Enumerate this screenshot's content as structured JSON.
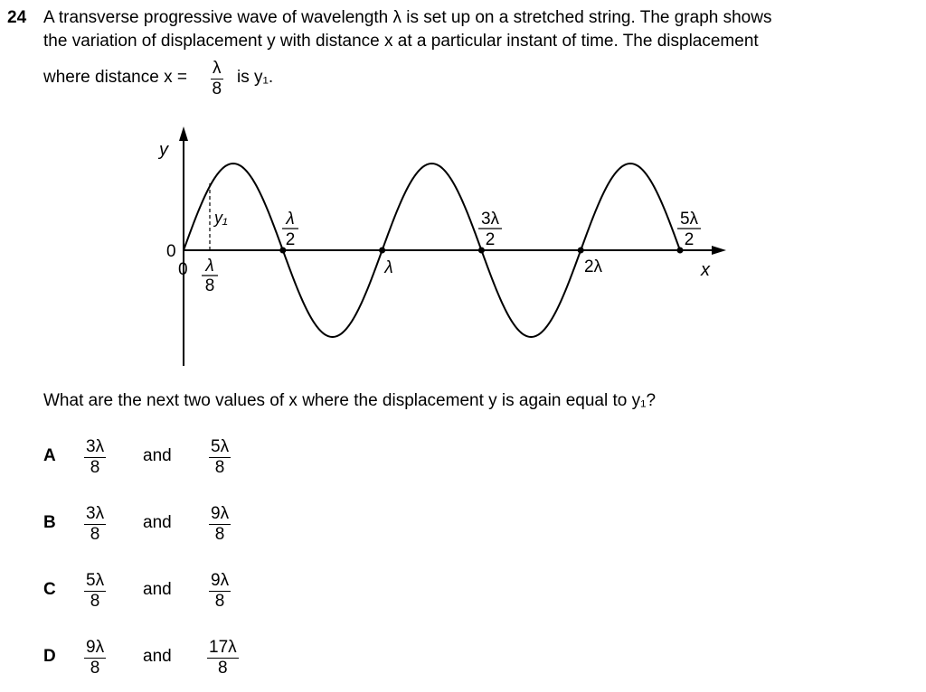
{
  "question": {
    "number": "24",
    "line1": "A transverse progressive wave of wavelength λ is set up on a stretched string. The graph shows",
    "line2": "the variation of displacement y with distance x at a particular instant of time. The displacement",
    "line3_prefix": "where distance x =",
    "line3_frac_num": "λ",
    "line3_frac_den": "8",
    "line3_suffix": "is y₁.",
    "prompt": "What are the next two values of x where the displacement y is again equal to y₁?"
  },
  "graph": {
    "y_axis_label": "y",
    "x_axis_label": "x",
    "origin_y_label": "0",
    "origin_x_label": "0",
    "y1_label": "y₁",
    "lambda_over_8": {
      "num": "λ",
      "den": "8"
    },
    "half_lambda": {
      "num": "λ",
      "den": "2"
    },
    "lambda": "λ",
    "three_half_lambda": {
      "num": "3λ",
      "den": "2"
    },
    "two_lambda": "2λ",
    "five_half_lambda": {
      "num": "5λ",
      "den": "2"
    }
  },
  "chart_data": {
    "type": "line",
    "x_unit": "wavelengths",
    "x_range": [
      0,
      2.5
    ],
    "amplitude": 1,
    "function": "y = sin(2πx/λ)",
    "marked_points_x": [
      0,
      0.5,
      1,
      1.5,
      2,
      2.5
    ],
    "y1_at_x": 0.125
  },
  "options": [
    {
      "letter": "A",
      "first": {
        "num": "3λ",
        "den": "8"
      },
      "and": "and",
      "second": {
        "num": "5λ",
        "den": "8"
      }
    },
    {
      "letter": "B",
      "first": {
        "num": "3λ",
        "den": "8"
      },
      "and": "and",
      "second": {
        "num": "9λ",
        "den": "8"
      }
    },
    {
      "letter": "C",
      "first": {
        "num": "5λ",
        "den": "8"
      },
      "and": "and",
      "second": {
        "num": "9λ",
        "den": "8"
      }
    },
    {
      "letter": "D",
      "first": {
        "num": "9λ",
        "den": "8"
      },
      "and": "and",
      "second": {
        "num": "17λ",
        "den": "8"
      }
    }
  ]
}
